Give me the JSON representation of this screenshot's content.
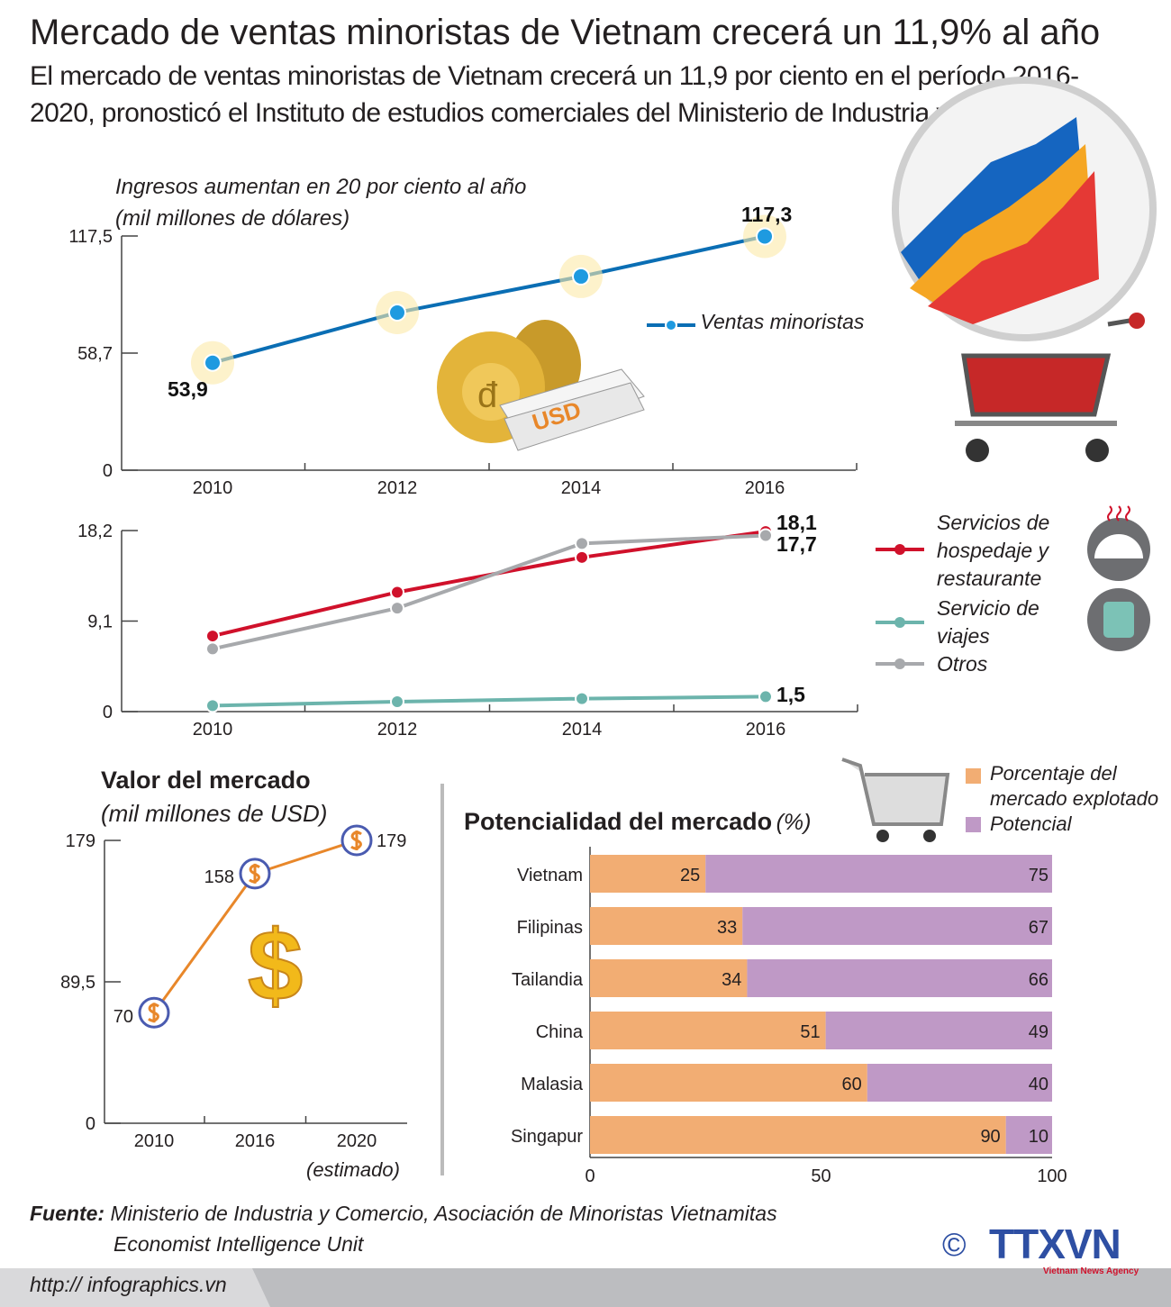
{
  "title": "Mercado de ventas minoristas de Vietnam crecerá un 11,9% al año",
  "subtitle": "El mercado de ventas minoristas de Vietnam crecerá un 11,9 por ciento en el período 2016-2020, pronosticó el Instituto de estudios comerciales del Ministerio de Industria y Comercio.",
  "chart_data": [
    {
      "type": "line",
      "title": "Ingresos aumentan en 20 por ciento al año",
      "unit": "(mil millones de dólares)",
      "categories": [
        "2010",
        "2012",
        "2014",
        "2016"
      ],
      "yticks": [
        "0",
        "58,7",
        "117,5"
      ],
      "ylim": [
        0,
        117.5
      ],
      "series": [
        {
          "name": "Ventas minoristas",
          "color": "#0a6eb4",
          "values": [
            53.9,
            79.1,
            97.2,
            117.3
          ]
        }
      ],
      "data_labels": [
        "53,9",
        "117,3"
      ],
      "legend": "right"
    },
    {
      "type": "line",
      "categories": [
        "2010",
        "2012",
        "2014",
        "2016"
      ],
      "yticks": [
        "0",
        "9,1",
        "18,2"
      ],
      "ylim": [
        0,
        18.2
      ],
      "series": [
        {
          "name": "Servicios de hospedaje y restaurante",
          "color": "#d0112b",
          "values": [
            7.6,
            12.0,
            15.5,
            18.1
          ]
        },
        {
          "name": "Servicio de viajes",
          "color": "#6cb4ac",
          "values": [
            0.6,
            1.0,
            1.3,
            1.5
          ]
        },
        {
          "name": "Otros",
          "color": "#a7a9ac",
          "values": [
            6.3,
            10.4,
            16.9,
            17.7
          ]
        }
      ],
      "data_labels": [
        "18,1",
        "17,7",
        "1,5"
      ],
      "legend": "right"
    },
    {
      "type": "line",
      "title": "Valor del mercado",
      "unit": "(mil millones de USD)",
      "categories": [
        "2010",
        "2016",
        "2020"
      ],
      "category_note": "(estimado)",
      "yticks": [
        "0",
        "89,5",
        "179"
      ],
      "ylim": [
        0,
        179
      ],
      "series": [
        {
          "color": "#e8872a",
          "values": [
            70,
            158,
            179
          ]
        }
      ],
      "data_labels": [
        "70",
        "158",
        "179"
      ]
    },
    {
      "type": "bar",
      "orientation": "horizontal",
      "stacked": true,
      "title": "Potencialidad del mercado",
      "unit": "(%)",
      "categories": [
        "Vietnam",
        "Filipinas",
        "Tailandia",
        "China",
        "Malasia",
        "Singapur"
      ],
      "series": [
        {
          "name": "Porcentaje del mercado explotado",
          "color": "#f2ad73",
          "values": [
            25,
            33,
            34,
            51,
            60,
            90
          ]
        },
        {
          "name": "Potencial",
          "color": "#bf99c6",
          "values": [
            75,
            67,
            66,
            49,
            40,
            10
          ]
        }
      ],
      "xticks": [
        "0",
        "50",
        "100"
      ],
      "xlim": [
        0,
        100
      ],
      "legend": "top-right"
    }
  ],
  "source": {
    "label": "Fuente:",
    "line1": "Ministerio de Industria y Comercio, Asociación de Minoristas Vietnamitas",
    "line2": "Economist Intelligence Unit"
  },
  "footer": {
    "url": "http:// infographics.vn",
    "copyright": "©",
    "logo": "TTXVN",
    "logo_sub": "Vietnam News Agency"
  }
}
